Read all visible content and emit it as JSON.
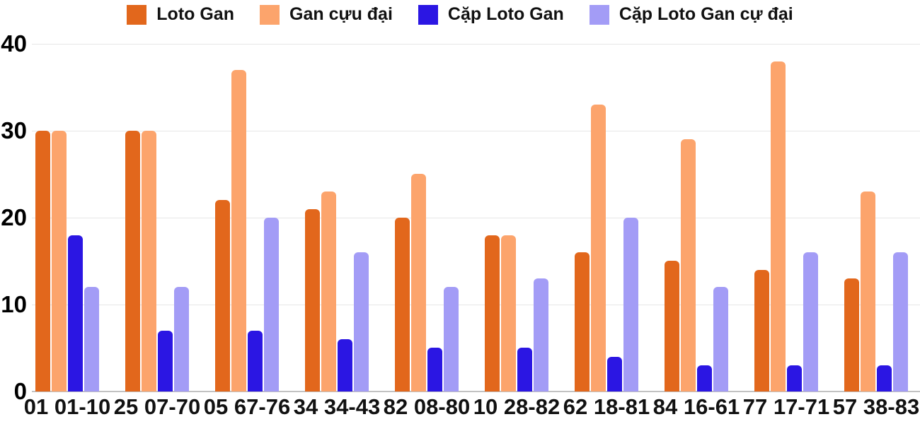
{
  "chart_data": {
    "type": "bar",
    "categories": [
      "01 01-10",
      "25 07-70",
      "05 67-76",
      "34 34-43",
      "82 08-80",
      "10 28-82",
      "62 18-81",
      "84 16-61",
      "77 17-71",
      "57 38-83"
    ],
    "series": [
      {
        "name": "Loto Gan",
        "color": "#e2671c",
        "values": [
          30,
          30,
          22,
          21,
          20,
          18,
          16,
          15,
          14,
          13
        ]
      },
      {
        "name": "Gan cựu đại",
        "color": "#fca46c",
        "values": [
          30,
          30,
          37,
          23,
          25,
          18,
          33,
          29,
          38,
          23
        ]
      },
      {
        "name": "Cặp Loto Gan",
        "color": "#2b16e3",
        "values": [
          18,
          7,
          7,
          6,
          5,
          5,
          4,
          3,
          3,
          3
        ]
      },
      {
        "name": "Cặp Loto Gan cự đại",
        "color": "#a39cf6",
        "values": [
          12,
          12,
          20,
          16,
          12,
          13,
          20,
          12,
          16,
          16
        ]
      }
    ],
    "yticks": [
      0,
      10,
      20,
      30,
      40
    ],
    "ylim": [
      0,
      40
    ],
    "legend_position": "top",
    "grid": true,
    "grid_color": "#e6e6e6",
    "baseline_color": "#c2c2c2",
    "text_color": "#111111",
    "background": "#ffffff"
  }
}
